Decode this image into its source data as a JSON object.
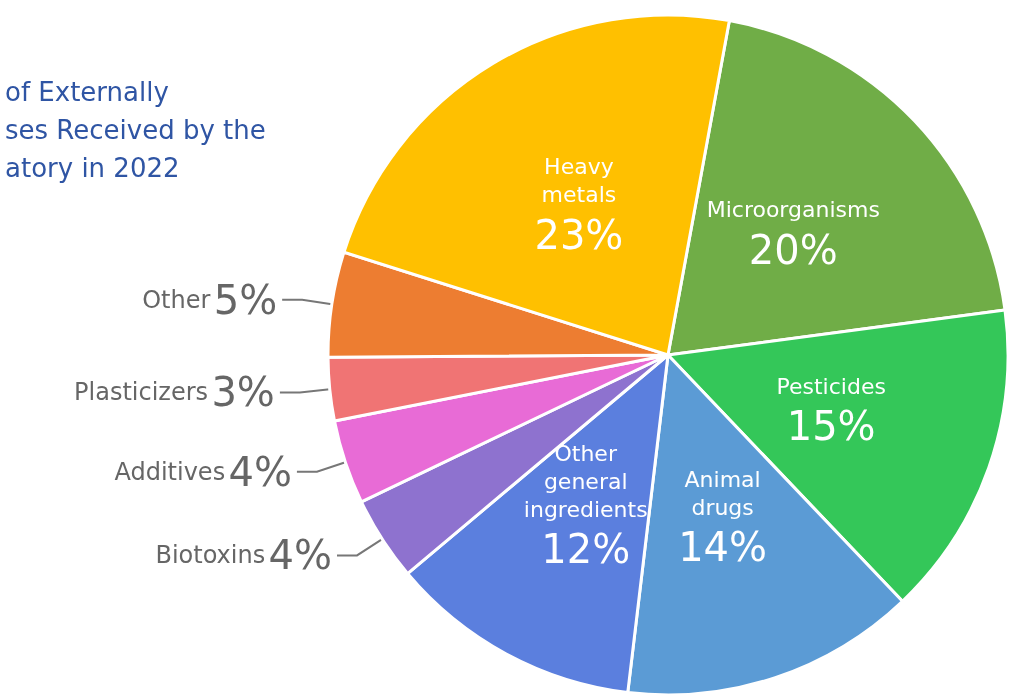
{
  "chart_data": {
    "type": "pie",
    "title": "of Externally\nses Received by the\natory in 2022",
    "categories": [
      "Microorganisms",
      "Pesticides",
      "Animal drugs",
      "Other general ingredients",
      "Biotoxins",
      "Additives",
      "Plasticizers",
      "Other",
      "Heavy metals"
    ],
    "values": [
      20,
      15,
      14,
      12,
      4,
      4,
      3,
      5,
      23
    ],
    "colors": [
      "#70ad47",
      "#34c759",
      "#5b9bd5",
      "#5b7fde",
      "#8e72cf",
      "#e86bd6",
      "#f07474",
      "#ed7d31",
      "#ffc000"
    ],
    "value_labels": [
      "20%",
      "15%",
      "14%",
      "12%",
      "4%",
      "4%",
      "3%",
      "5%",
      "23%"
    ],
    "legend": false
  }
}
